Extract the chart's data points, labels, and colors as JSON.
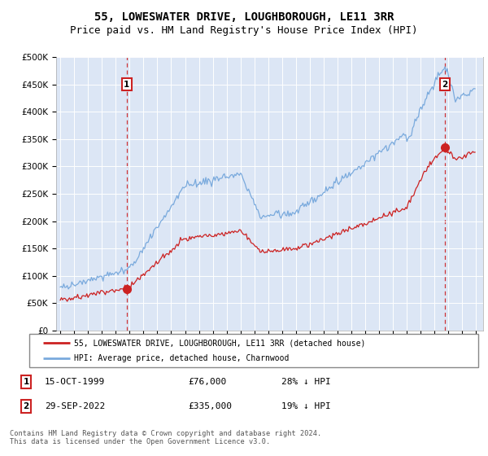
{
  "title": "55, LOWESWATER DRIVE, LOUGHBOROUGH, LE11 3RR",
  "subtitle": "Price paid vs. HM Land Registry's House Price Index (HPI)",
  "title_fontsize": 10,
  "subtitle_fontsize": 9,
  "plot_bg_color": "#dce6f5",
  "hpi_color": "#7aaadd",
  "price_color": "#cc2222",
  "dashed_line_color": "#cc2222",
  "purchase1_x": 1999.79,
  "purchase1_y": 76000,
  "purchase2_x": 2022.75,
  "purchase2_y": 335000,
  "legend_line1": "55, LOWESWATER DRIVE, LOUGHBOROUGH, LE11 3RR (detached house)",
  "legend_line2": "HPI: Average price, detached house, Charnwood",
  "footer": "Contains HM Land Registry data © Crown copyright and database right 2024.\nThis data is licensed under the Open Government Licence v3.0.",
  "ylim": [
    0,
    500000
  ],
  "xlim_start": 1994.7,
  "xlim_end": 2025.5,
  "xtick_years": [
    1995,
    1996,
    1997,
    1998,
    1999,
    2000,
    2001,
    2002,
    2003,
    2004,
    2005,
    2006,
    2007,
    2008,
    2009,
    2010,
    2011,
    2012,
    2013,
    2014,
    2015,
    2016,
    2017,
    2018,
    2019,
    2020,
    2021,
    2022,
    2023,
    2024,
    2025
  ],
  "yticks": [
    0,
    50000,
    100000,
    150000,
    200000,
    250000,
    300000,
    350000,
    400000,
    450000,
    500000
  ],
  "ylabels": [
    "£0",
    "£50K",
    "£100K",
    "£150K",
    "£200K",
    "£250K",
    "£300K",
    "£350K",
    "£400K",
    "£450K",
    "£500K"
  ]
}
